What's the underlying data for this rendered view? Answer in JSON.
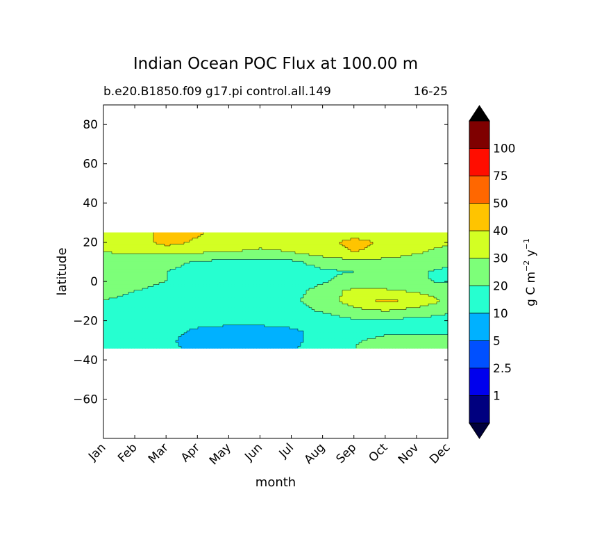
{
  "figure": {
    "title": "Indian Ocean POC Flux at 100.00 m",
    "subtitle_left": "b.e20.B1850.f09 g17.pi control.all.149",
    "subtitle_right": "16-25"
  },
  "chart_data": {
    "type": "heatmap",
    "subtype": "filled-contour",
    "title": "Indian Ocean POC Flux at 100.00 m",
    "xlabel": "month",
    "ylabel": "latitude",
    "x_categories": [
      "Jan",
      "Feb",
      "Mar",
      "Apr",
      "May",
      "Jun",
      "Jul",
      "Aug",
      "Sep",
      "Oct",
      "Nov",
      "Dec"
    ],
    "xlim": [
      0,
      11
    ],
    "ylim": [
      -80,
      90
    ],
    "y_ticks": [
      80,
      60,
      40,
      20,
      0,
      -20,
      -40,
      -60
    ],
    "y_tick_labels": [
      "80",
      "60",
      "40",
      "20",
      "0",
      "−20",
      "−40",
      "−60"
    ],
    "data_lat_range": [
      -34,
      25
    ],
    "colorbar": {
      "label": "g C m⁻² y⁻¹",
      "label_parts": {
        "base": "g C m",
        "sup1": "−2",
        "mid": "y",
        "sup2": "−1"
      },
      "levels": [
        0,
        1,
        2.5,
        5,
        10,
        20,
        30,
        40,
        50,
        75,
        100,
        125
      ],
      "level_labels": [
        "1",
        "2.5",
        "5",
        "10",
        "20",
        "30",
        "40",
        "50",
        "75",
        "100"
      ],
      "colors": [
        "#00007f",
        "#0000ed",
        "#0050ff",
        "#00b1ff",
        "#26ffd0",
        "#7dff79",
        "#d3ff23",
        "#ffc400",
        "#ff6700",
        "#ff0d00",
        "#7f0000"
      ],
      "extend": "both",
      "under_color": "#00003b",
      "over_color": "#000000"
    },
    "lat": [
      25,
      20,
      15,
      10,
      5,
      0,
      -5,
      -10,
      -15,
      -20,
      -25,
      -30,
      -34
    ],
    "z": [
      [
        32,
        33,
        45,
        42,
        33,
        31,
        31,
        32,
        33,
        32,
        32,
        31
      ],
      [
        33,
        34,
        44,
        38,
        33,
        32,
        32,
        36,
        44,
        38,
        32,
        31
      ],
      [
        30,
        31,
        32,
        31,
        30,
        29,
        30,
        35,
        40,
        37,
        31,
        28
      ],
      [
        27,
        25,
        23,
        19,
        17,
        16,
        18,
        24,
        27,
        26,
        24,
        22
      ],
      [
        24,
        22,
        20,
        17,
        15,
        14,
        15,
        18,
        20,
        22,
        21,
        18
      ],
      [
        22,
        21,
        20,
        17,
        14,
        13,
        14,
        19,
        24,
        22,
        21,
        19
      ],
      [
        21,
        20,
        19,
        17,
        15,
        14,
        16,
        24,
        33,
        32,
        29,
        25
      ],
      [
        20,
        19,
        18,
        17,
        15,
        15,
        18,
        25,
        35,
        42,
        37,
        28
      ],
      [
        18,
        17,
        16,
        15,
        14,
        14,
        16,
        21,
        27,
        30,
        26,
        22
      ],
      [
        16,
        15,
        14,
        13,
        12,
        12,
        13,
        15,
        18,
        18,
        17,
        16
      ],
      [
        15,
        14,
        12,
        9,
        8,
        8,
        9,
        12,
        16,
        18,
        18,
        18
      ],
      [
        14,
        13,
        11,
        8,
        7,
        7,
        8,
        13,
        19,
        22,
        24,
        24
      ],
      [
        13,
        12,
        11,
        9,
        8,
        8,
        9,
        14,
        20,
        24,
        27,
        25
      ]
    ]
  }
}
